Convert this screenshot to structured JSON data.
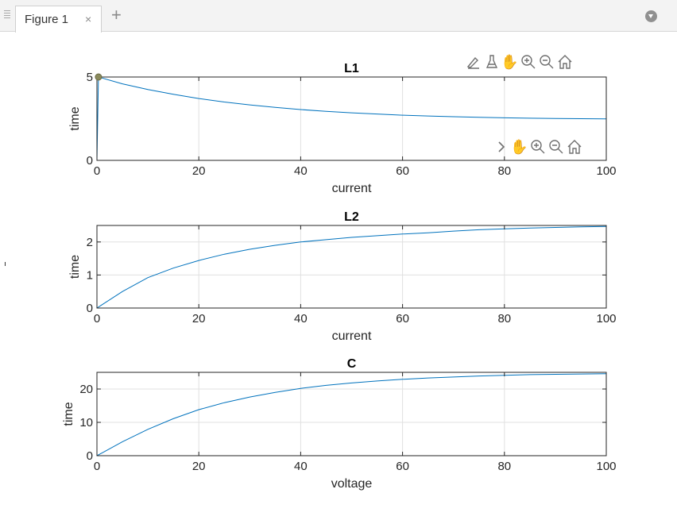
{
  "window": {
    "tab_label": "Figure 1",
    "tab_close": "×",
    "tab_add": "+"
  },
  "colors": {
    "line": "#0072bd",
    "axes": "#262626",
    "grid": "#e0e0e0",
    "marker": "#8a8a5c"
  },
  "toolbars": {
    "top": [
      "brush-edit-icon",
      "data-brush-icon",
      "pan-hand-icon",
      "zoom-in-icon",
      "zoom-out-icon",
      "home-icon"
    ],
    "lower": [
      "expand-chevron-icon",
      "pan-hand-icon",
      "zoom-in-icon",
      "zoom-out-icon",
      "home-icon"
    ]
  },
  "chart_data": [
    {
      "type": "line",
      "title": "L1",
      "xlabel": "current",
      "ylabel": "time",
      "xlim": [
        0,
        100
      ],
      "ylim": [
        0,
        5
      ],
      "xticks": [
        0,
        20,
        40,
        60,
        80,
        100
      ],
      "yticks": [
        0,
        5
      ],
      "grid": true,
      "highlight_point": [
        0.3,
        5
      ],
      "series": [
        {
          "x": [
            0,
            0.3,
            5,
            10,
            15,
            20,
            25,
            30,
            35,
            40,
            45,
            50,
            55,
            60,
            65,
            70,
            75,
            80,
            85,
            90,
            95,
            100
          ],
          "y": [
            0,
            5,
            4.59,
            4.25,
            3.96,
            3.71,
            3.5,
            3.33,
            3.18,
            3.05,
            2.94,
            2.85,
            2.78,
            2.71,
            2.66,
            2.62,
            2.58,
            2.55,
            2.53,
            2.51,
            2.5,
            2.49
          ]
        }
      ]
    },
    {
      "type": "line",
      "title": "L2",
      "xlabel": "current",
      "ylabel": "time",
      "xlim": [
        0,
        100
      ],
      "ylim": [
        0,
        2.5
      ],
      "xticks": [
        0,
        20,
        40,
        60,
        80,
        100
      ],
      "yticks": [
        0,
        1,
        2
      ],
      "grid": true,
      "series": [
        {
          "x": [
            0,
            5,
            10,
            15,
            20,
            25,
            30,
            35,
            40,
            45,
            50,
            55,
            60,
            65,
            70,
            75,
            80,
            85,
            90,
            95,
            100
          ],
          "y": [
            0,
            0.5,
            0.92,
            1.21,
            1.44,
            1.63,
            1.78,
            1.9,
            2.0,
            2.07,
            2.14,
            2.19,
            2.24,
            2.28,
            2.33,
            2.37,
            2.4,
            2.42,
            2.44,
            2.46,
            2.47
          ]
        }
      ]
    },
    {
      "type": "line",
      "title": "C",
      "xlabel": "voltage",
      "ylabel": "time",
      "xlim": [
        0,
        100
      ],
      "ylim": [
        0,
        25
      ],
      "xticks": [
        0,
        20,
        40,
        60,
        80,
        100
      ],
      "yticks": [
        0,
        10,
        20
      ],
      "grid": true,
      "series": [
        {
          "x": [
            0,
            5,
            10,
            15,
            20,
            25,
            30,
            35,
            40,
            45,
            50,
            55,
            60,
            65,
            70,
            75,
            80,
            85,
            90,
            95,
            100
          ],
          "y": [
            0,
            4.2,
            7.9,
            11.1,
            13.8,
            15.9,
            17.6,
            19.0,
            20.2,
            21.1,
            21.8,
            22.4,
            22.9,
            23.3,
            23.6,
            23.9,
            24.1,
            24.3,
            24.4,
            24.5,
            24.6
          ]
        }
      ]
    }
  ]
}
